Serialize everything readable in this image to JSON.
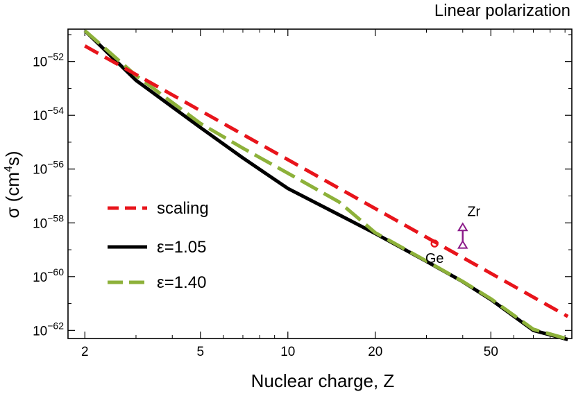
{
  "chart_data": {
    "type": "line",
    "title": "Linear polarization",
    "xlabel": "Nuclear charge, Z",
    "ylabel": {
      "main": "σ (cm",
      "sup": "4",
      "end": "s)"
    },
    "xscale": "log",
    "yscale": "log",
    "xlim": [
      1.75,
      95
    ],
    "ylim": [
      5e-63,
      1.6e-51
    ],
    "xticks": [
      {
        "value": 2,
        "label": "2"
      },
      {
        "value": 5,
        "label": "5"
      },
      {
        "value": 10,
        "label": "10"
      },
      {
        "value": 20,
        "label": "20"
      },
      {
        "value": 50,
        "label": "50"
      }
    ],
    "yticks": [
      {
        "value": 1e-52,
        "base": "10",
        "exp": "−52"
      },
      {
        "value": 1e-54,
        "base": "10",
        "exp": "−54"
      },
      {
        "value": 1e-56,
        "base": "10",
        "exp": "−56"
      },
      {
        "value": 1e-58,
        "base": "10",
        "exp": "−58"
      },
      {
        "value": 1e-60,
        "base": "10",
        "exp": "−60"
      },
      {
        "value": 1e-62,
        "base": "10",
        "exp": "−62"
      }
    ],
    "grid": false,
    "legend_position": "left",
    "series": [
      {
        "name": "scaling",
        "color": "#e8141b",
        "style": "dashed",
        "x": [
          2,
          92
        ],
        "y": [
          3.8e-52,
          3.3e-62
        ]
      },
      {
        "name": "ε=1.05",
        "color": "#000000",
        "style": "solid",
        "x": [
          2,
          3,
          5,
          7,
          10,
          15,
          20,
          30,
          40,
          50,
          70,
          92
        ],
        "y": [
          1.4e-51,
          2e-53,
          3.5e-55,
          2.6e-56,
          1.9e-57,
          2e-58,
          4e-59,
          3.7e-60,
          6.5e-61,
          1.4e-61,
          1e-62,
          4.6e-63
        ]
      },
      {
        "name": "ε=1.40",
        "color": "#8db13a",
        "style": "dashed",
        "x": [
          2,
          3,
          5,
          7,
          10,
          15,
          20,
          30,
          40,
          50,
          70,
          92
        ],
        "y": [
          1.4e-51,
          3e-53,
          5e-55,
          6e-56,
          7e-57,
          6e-58,
          4.3e-59,
          3.8e-60,
          6.6e-61,
          1.5e-61,
          1.1e-62,
          4.8e-63
        ]
      }
    ],
    "annotations": [
      {
        "label": "Ge",
        "x": 32,
        "y": 1.7e-59,
        "marker": "circle",
        "color": "#e8141b"
      },
      {
        "label": "Zr",
        "x": 40,
        "y_low": 1.55e-59,
        "y_high": 7e-59,
        "marker": "triangle",
        "color": "#8b1a89"
      }
    ]
  }
}
